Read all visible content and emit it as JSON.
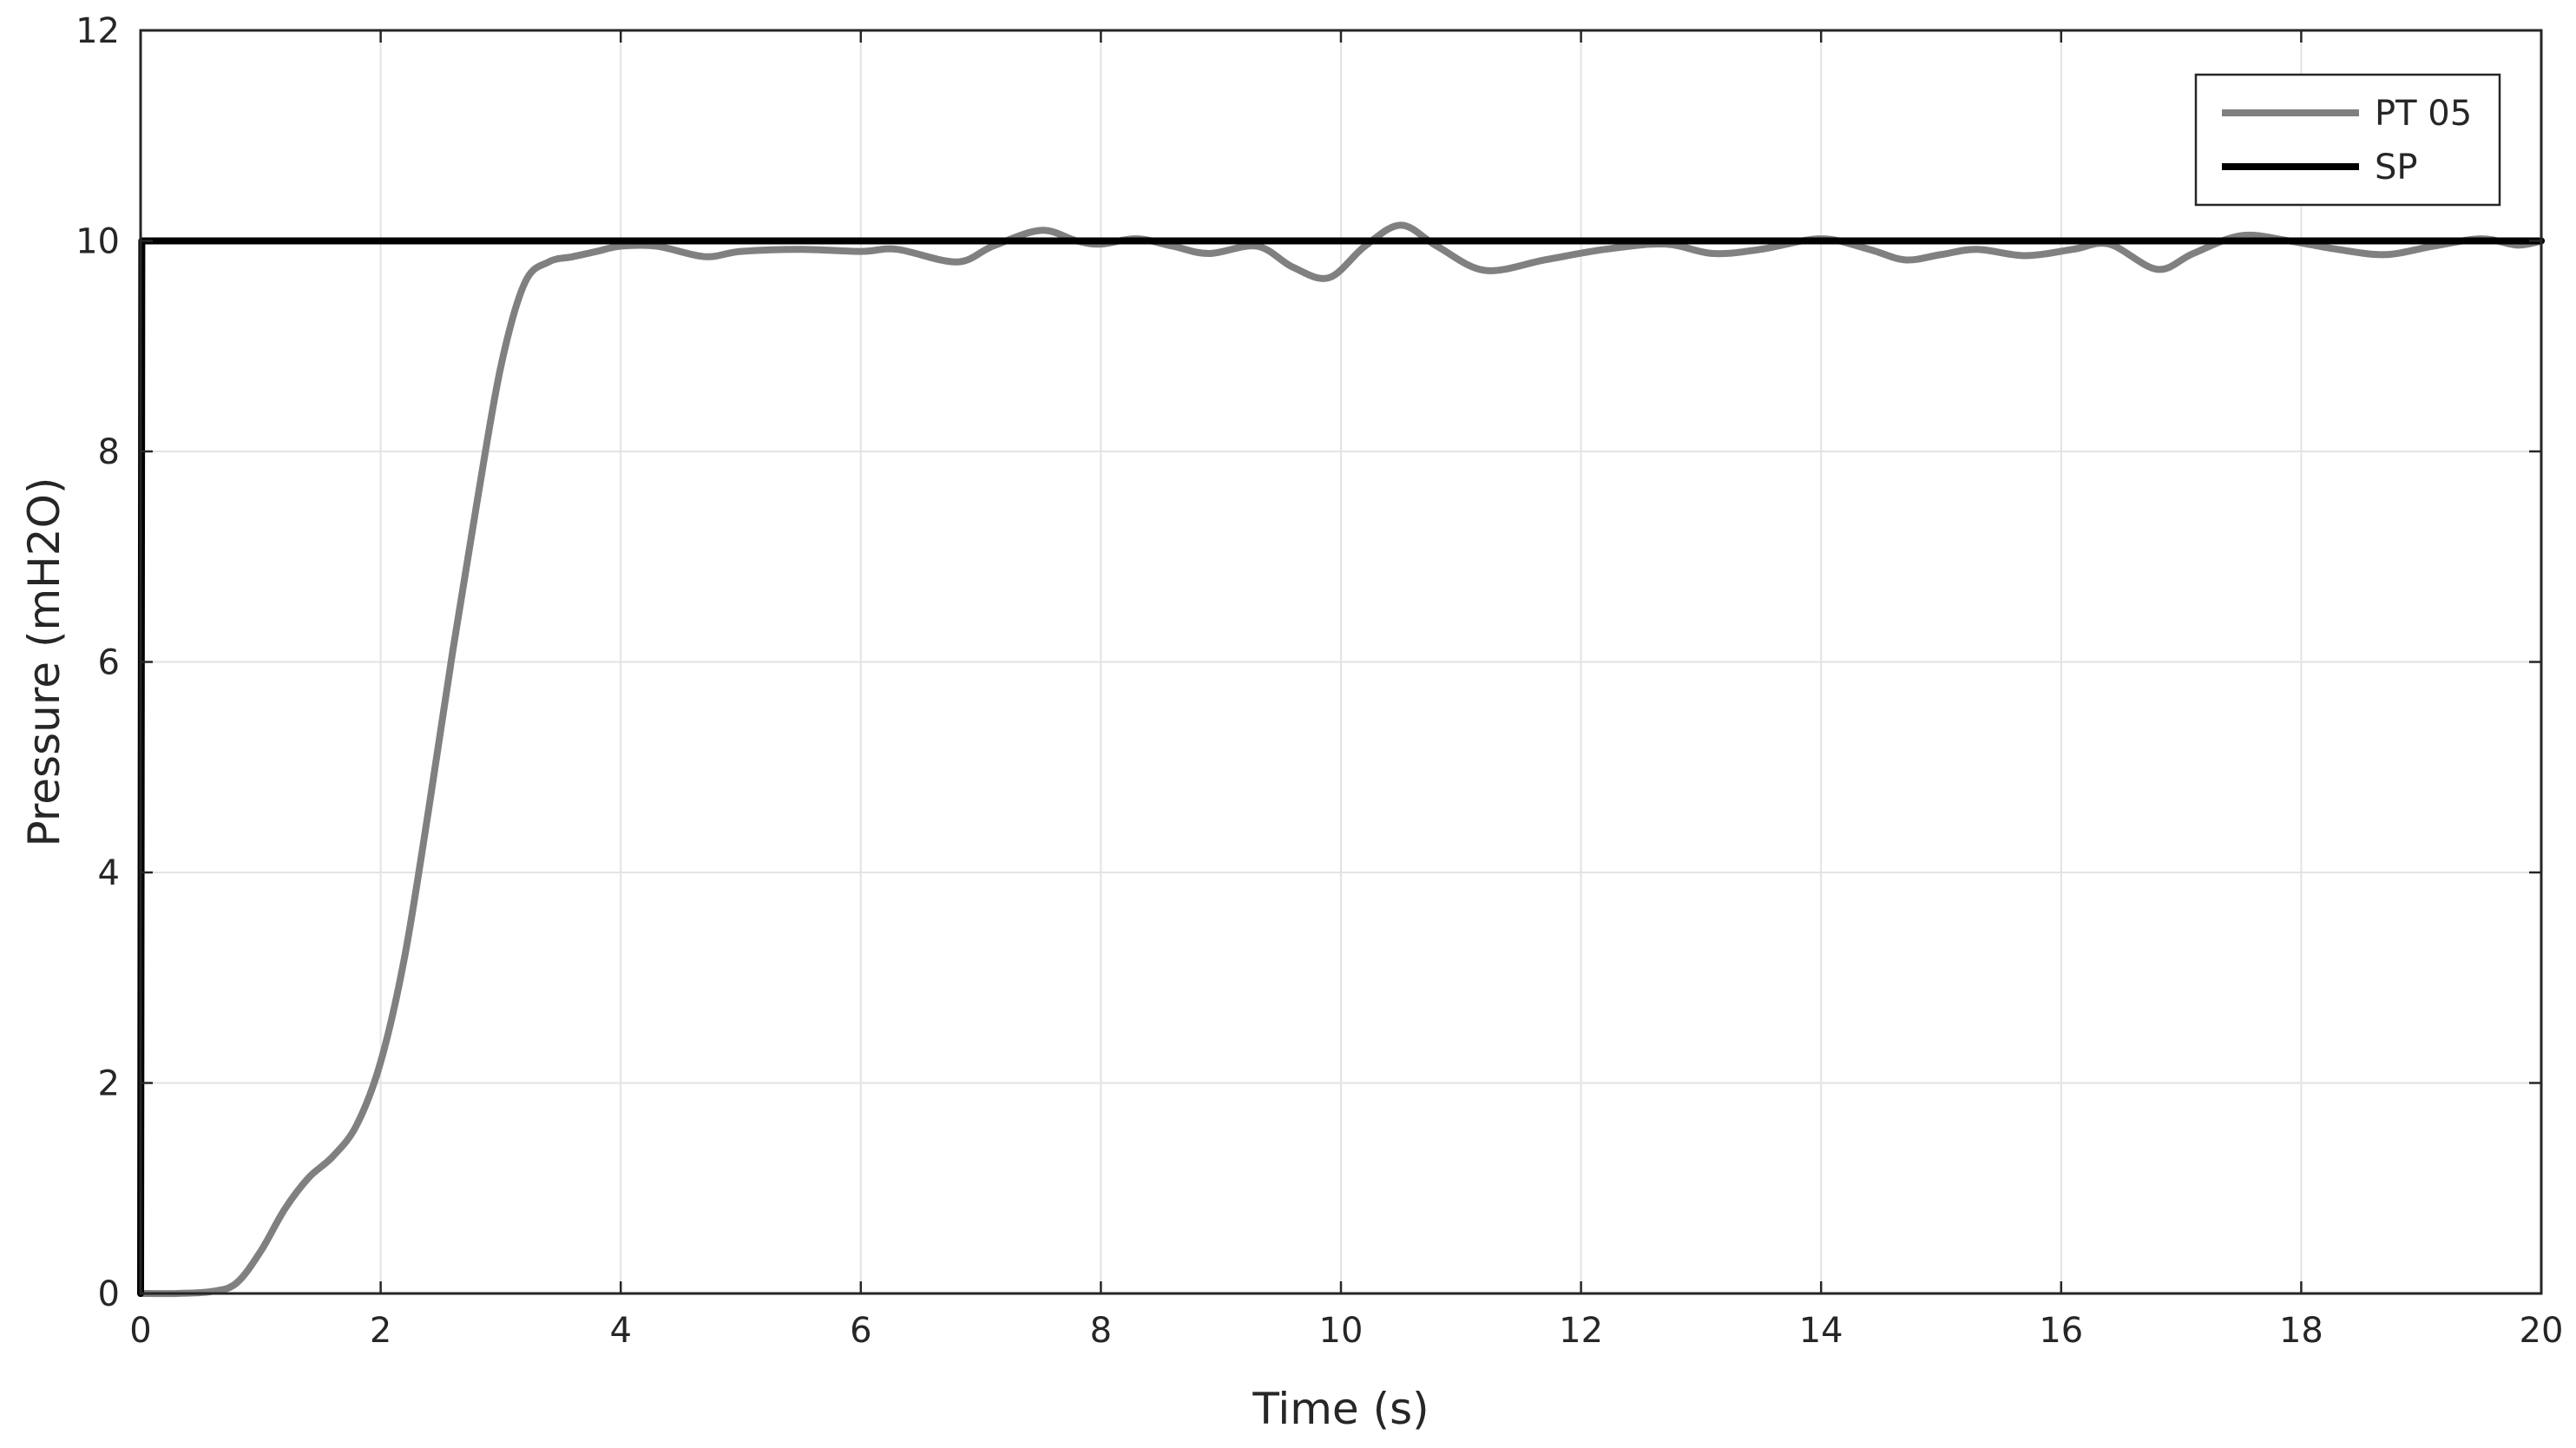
{
  "chart_data": {
    "type": "line",
    "xlabel": "Time (s)",
    "ylabel": "Pressure (mH2O)",
    "xlim": [
      0,
      20
    ],
    "ylim": [
      0,
      12
    ],
    "xticks": [
      0,
      2,
      4,
      6,
      8,
      10,
      12,
      14,
      16,
      18,
      20
    ],
    "yticks": [
      0,
      2,
      4,
      6,
      8,
      10,
      12
    ],
    "xtick_labels": [
      "0",
      "2",
      "4",
      "6",
      "8",
      "10",
      "12",
      "14",
      "16",
      "18",
      "20"
    ],
    "ytick_labels": [
      "0",
      "2",
      "4",
      "6",
      "8",
      "10",
      "12"
    ],
    "grid": true,
    "legend_position": "top-right",
    "series": [
      {
        "name": "PT 05",
        "color": "#808080",
        "x": [
          0,
          0.3,
          0.6,
          0.8,
          1.0,
          1.2,
          1.4,
          1.6,
          1.8,
          2.0,
          2.2,
          2.4,
          2.6,
          2.8,
          3.0,
          3.2,
          3.4,
          3.6,
          3.8,
          4.0,
          4.3,
          4.7,
          5.0,
          5.5,
          6.0,
          6.3,
          6.8,
          7.1,
          7.5,
          7.8,
          8.0,
          8.3,
          8.6,
          8.9,
          9.3,
          9.6,
          9.9,
          10.2,
          10.5,
          10.8,
          11.2,
          11.7,
          12.2,
          12.7,
          13.1,
          13.5,
          14.0,
          14.4,
          14.7,
          15.0,
          15.3,
          15.7,
          16.1,
          16.4,
          16.8,
          17.1,
          17.5,
          17.9,
          18.3,
          18.7,
          19.1,
          19.5,
          19.8,
          20.0
        ],
        "y": [
          0,
          0,
          0.02,
          0.1,
          0.4,
          0.8,
          1.1,
          1.3,
          1.6,
          2.2,
          3.2,
          4.6,
          6.1,
          7.5,
          8.8,
          9.6,
          9.8,
          9.85,
          9.9,
          9.95,
          9.95,
          9.85,
          9.9,
          9.92,
          9.9,
          9.92,
          9.8,
          9.95,
          10.1,
          10.0,
          9.97,
          10.02,
          9.95,
          9.88,
          9.95,
          9.75,
          9.65,
          9.95,
          10.15,
          9.95,
          9.72,
          9.82,
          9.92,
          9.97,
          9.88,
          9.92,
          10.02,
          9.92,
          9.82,
          9.87,
          9.92,
          9.86,
          9.92,
          9.97,
          9.73,
          9.88,
          10.05,
          10.0,
          9.92,
          9.87,
          9.95,
          10.02,
          9.96,
          10.0
        ]
      },
      {
        "name": "SP",
        "color": "#000000",
        "x": [
          0,
          0.01,
          20
        ],
        "y": [
          0,
          10,
          10
        ]
      }
    ]
  }
}
